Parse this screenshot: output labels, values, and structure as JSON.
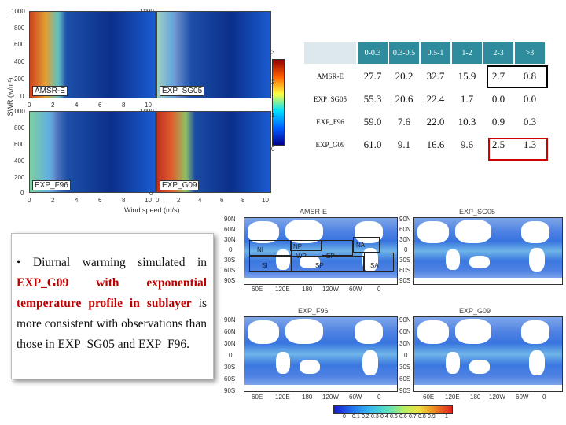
{
  "scatter": {
    "ylabel": "SWR (w/m²)",
    "xlabel": "Wind speed (m/s)",
    "panels": [
      {
        "label": "AMSR-E"
      },
      {
        "label": "EXP_SG05"
      },
      {
        "label": "EXP_F96"
      },
      {
        "label": "EXP_G09"
      }
    ],
    "yticks": [
      "1000",
      "800",
      "600",
      "400",
      "200",
      "0"
    ],
    "xticks": [
      "0",
      "2",
      "4",
      "6",
      "8",
      "10"
    ],
    "colorbar_ticks": [
      "3",
      "2",
      "1",
      "0"
    ]
  },
  "table": {
    "headers": [
      "0-0.3",
      "0.3-0.5",
      "0.5-1",
      "1-2",
      "2-3",
      ">3"
    ],
    "rows": [
      {
        "label": "AMSR-E",
        "values": [
          "27.7",
          "20.2",
          "32.7",
          "15.9",
          "2.7",
          "0.8"
        ]
      },
      {
        "label": "EXP_SG05",
        "values": [
          "55.3",
          "20.6",
          "22.4",
          "1.7",
          "0.0",
          "0.0"
        ]
      },
      {
        "label": "EXP_F96",
        "values": [
          "59.0",
          "7.6",
          "22.0",
          "10.3",
          "0.9",
          "0.3"
        ]
      },
      {
        "label": "EXP_G09",
        "values": [
          "61.0",
          "9.1",
          "16.6",
          "9.6",
          "2.5",
          "1.3"
        ]
      }
    ]
  },
  "note": {
    "bullet": "•",
    "part1": "Diurnal warming simulated in",
    "red": "EXP_G09 with exponential temperature profile in sublayer",
    "part2": "is more consistent with observations than those in EXP_SG05 and EXP_F96."
  },
  "maps": {
    "titles": [
      "AMSR-E",
      "EXP_SG05",
      "EXP_F96",
      "EXP_G09"
    ],
    "lat_ticks": [
      "90N",
      "60N",
      "30N",
      "0",
      "30S",
      "60S",
      "90S"
    ],
    "lon_ticks": [
      "60E",
      "120E",
      "180",
      "120W",
      "60W",
      "0"
    ],
    "regions": [
      "NI",
      "NP",
      "WP",
      "EP",
      "NA",
      "SI",
      "SP",
      "SA"
    ],
    "colorbar_ticks": [
      "0",
      "0.1",
      "0.2",
      "0.3",
      "0.4",
      "0.5",
      "0.6",
      "0.7",
      "0.8",
      "0.9",
      "1"
    ]
  }
}
